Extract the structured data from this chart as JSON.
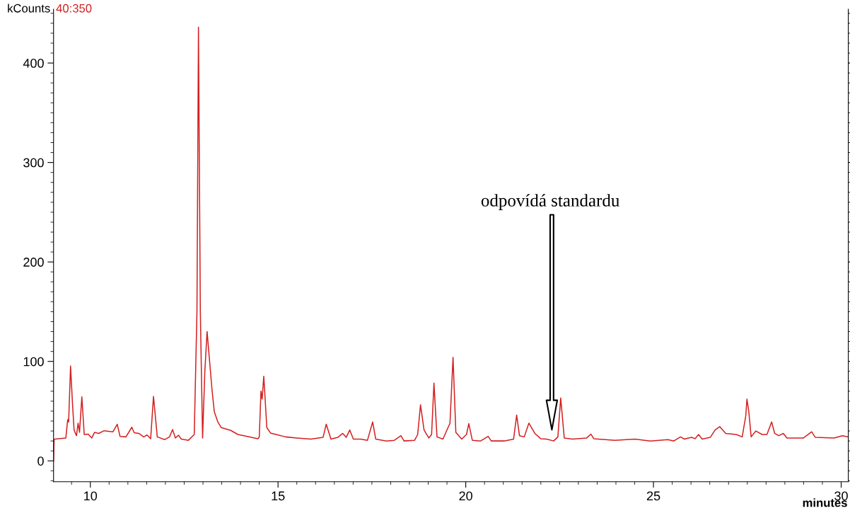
{
  "chart_data": {
    "type": "line",
    "xlabel": "minutes",
    "ylabel": "kCounts",
    "annotations": [
      "40:350",
      "odpovídá standardu"
    ],
    "xlim": [
      9.02,
      30.19
    ],
    "ylim": [
      -21,
      454
    ],
    "xticks": [
      10,
      15,
      20,
      25,
      30
    ],
    "yticks": [
      0,
      100,
      200,
      300,
      400
    ],
    "grid": false,
    "marker": "none",
    "line_style": "solid",
    "series": [
      {
        "color": "#d42020",
        "x": [
          9.021,
          9.034,
          9.05,
          9.347,
          9.397,
          9.422,
          9.473,
          9.523,
          9.567,
          9.63,
          9.674,
          9.712,
          9.774,
          9.837,
          9.944,
          10.038,
          10.113,
          10.226,
          10.364,
          10.603,
          10.716,
          10.791,
          10.948,
          11.105,
          11.168,
          11.294,
          11.419,
          11.513,
          11.607,
          11.682,
          11.783,
          11.983,
          12.109,
          12.19,
          12.266,
          12.348,
          12.423,
          12.612,
          12.768,
          12.84,
          12.88,
          12.93,
          12.99,
          13.05,
          13.11,
          13.239,
          13.302,
          13.396,
          13.49,
          13.742,
          13.93,
          14.181,
          14.463,
          14.5,
          14.545,
          14.576,
          14.62,
          14.701,
          14.8,
          14.95,
          15.2,
          15.5,
          15.876,
          16.2,
          16.284,
          16.409,
          16.597,
          16.723,
          16.817,
          16.911,
          17.006,
          17.194,
          17.382,
          17.52,
          17.602,
          17.885,
          18.1,
          18.273,
          18.355,
          18.638,
          18.719,
          18.795,
          18.889,
          19.015,
          19.09,
          19.153,
          19.234,
          19.392,
          19.58,
          19.661,
          19.736,
          19.893,
          20.019,
          20.081,
          20.175,
          20.395,
          20.597,
          20.678,
          21.023,
          21.275,
          21.356,
          21.431,
          21.557,
          21.682,
          21.84,
          21.996,
          22.153,
          22.341,
          22.454,
          22.529,
          22.624,
          22.844,
          23.22,
          23.333,
          23.409,
          23.535,
          23.974,
          24.507,
          24.915,
          25.386,
          25.543,
          25.719,
          25.825,
          26.013,
          26.107,
          26.202,
          26.296,
          26.516,
          26.642,
          26.767,
          26.925,
          27.207,
          27.363,
          27.458,
          27.49,
          27.54,
          27.602,
          27.727,
          27.896,
          28.023,
          28.148,
          28.229,
          28.336,
          28.461,
          28.555,
          28.996,
          29.214,
          29.309,
          29.812,
          30.031,
          30.19
        ],
        "values": [
          0,
          20.7,
          21.9,
          23.0,
          41.4,
          39.1,
          95.4,
          58.6,
          31.0,
          25.3,
          37.9,
          28.7,
          64.4,
          26.5,
          26.9,
          23.0,
          28.7,
          27.6,
          30.3,
          29.2,
          36.8,
          24.6,
          24.1,
          33.8,
          28.3,
          27.6,
          24.1,
          26.0,
          22.3,
          64.8,
          24.1,
          21.4,
          24.1,
          31.5,
          23.0,
          25.8,
          21.9,
          20.7,
          26.5,
          150,
          436,
          150,
          23.0,
          90,
          130,
          72.4,
          49.4,
          39.1,
          33.4,
          30.6,
          26.5,
          24.6,
          22.3,
          24.0,
          70.1,
          62.1,
          85.1,
          33.4,
          28.0,
          26.5,
          24.1,
          23.0,
          21.9,
          23.7,
          36.8,
          21.9,
          23.7,
          27.6,
          23.7,
          31.0,
          21.9,
          21.9,
          20.7,
          39.1,
          21.9,
          20.0,
          20.7,
          25.3,
          20.0,
          20.7,
          26.5,
          56.3,
          31.0,
          23.0,
          26.5,
          78.2,
          24.1,
          21.9,
          37.9,
          104.1,
          28.7,
          21.9,
          26.5,
          37.5,
          20.7,
          20.0,
          24.6,
          20.0,
          20.0,
          21.9,
          46.0,
          25.3,
          24.1,
          37.9,
          27.6,
          22.3,
          21.9,
          20.0,
          24.1,
          63.2,
          23.0,
          21.9,
          23.0,
          26.9,
          22.3,
          21.9,
          20.7,
          21.9,
          20.0,
          21.4,
          20.0,
          24.1,
          21.9,
          23.7,
          22.3,
          26.5,
          21.9,
          23.7,
          31.0,
          34.4,
          27.6,
          26.5,
          24.1,
          44.9,
          62.1,
          49.4,
          24.1,
          30.0,
          26.5,
          26.5,
          39.1,
          27.6,
          25.3,
          27.6,
          23.0,
          23.0,
          29.2,
          23.7,
          23.0,
          25.3,
          24.1
        ]
      }
    ]
  }
}
